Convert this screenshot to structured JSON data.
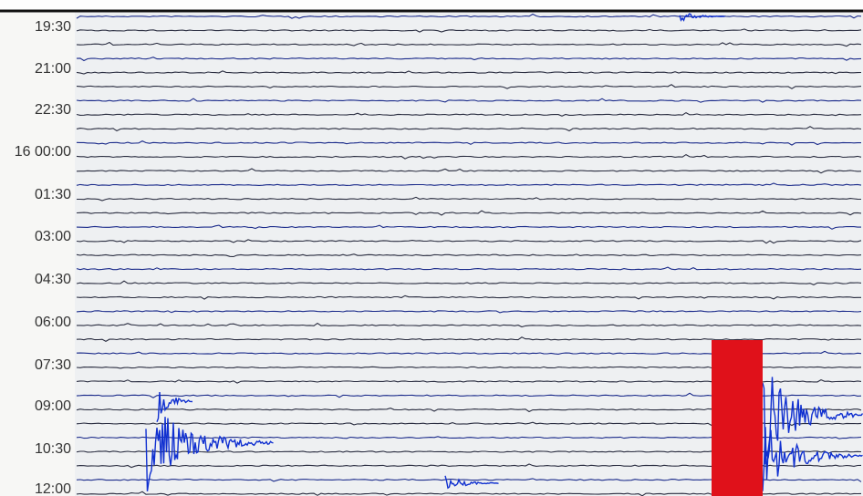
{
  "time_labels": [
    "19:30",
    "21:00",
    "22:30",
    "16 00:00",
    "01:30",
    "03:00",
    "04:30",
    "06:00",
    "07:30",
    "09:00",
    "10:30",
    "12:00"
  ]
}
